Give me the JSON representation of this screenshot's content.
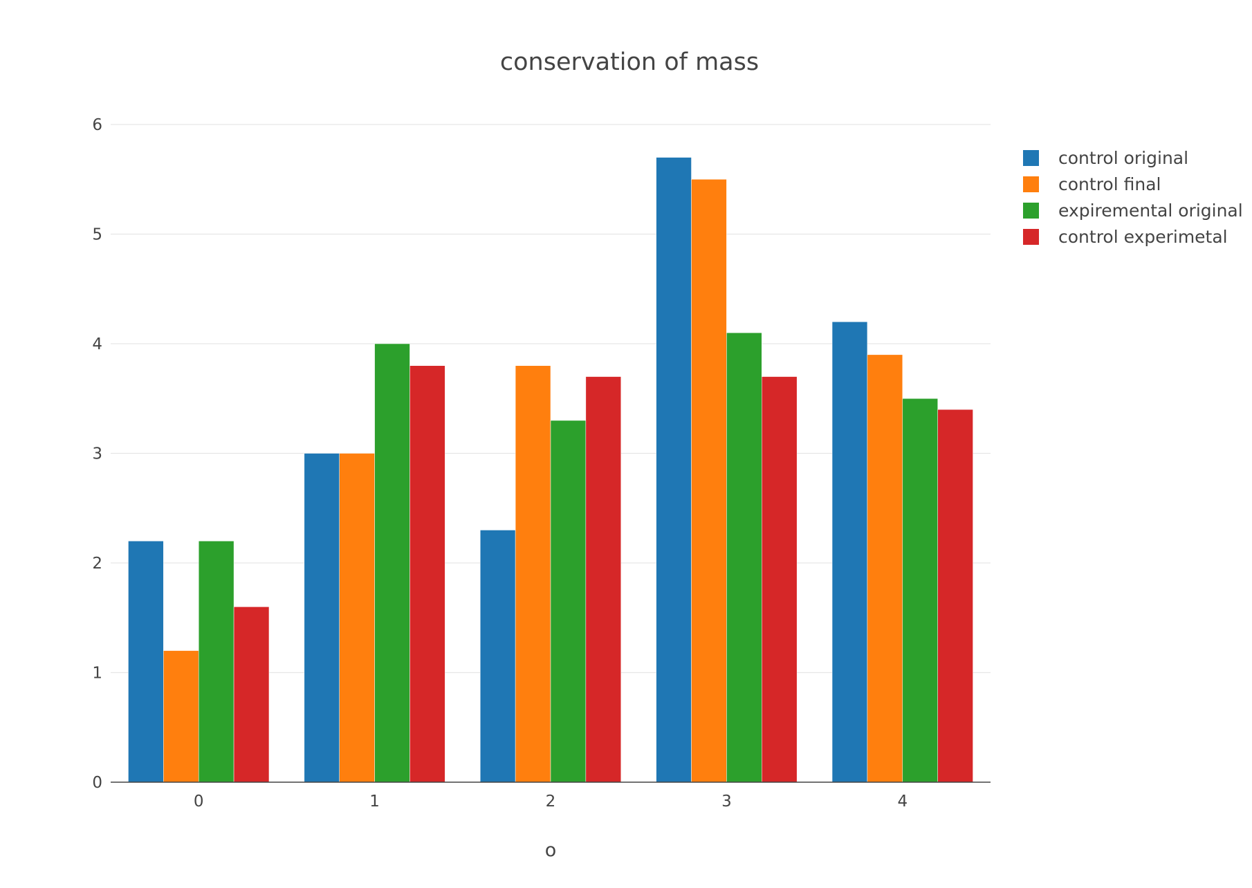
{
  "chart_data": {
    "type": "bar",
    "title": "conservation of mass",
    "xlabel": "o",
    "ylabel": "",
    "categories": [
      "0",
      "1",
      "2",
      "3",
      "4"
    ],
    "ylim": [
      0,
      6
    ],
    "yticks": [
      "0",
      "1",
      "2",
      "3",
      "4",
      "5",
      "6"
    ],
    "grid": true,
    "legend_position": "top-right",
    "series": [
      {
        "name": "control original",
        "color": "#1f77b4",
        "values": [
          2.2,
          3.0,
          2.3,
          5.7,
          4.2
        ]
      },
      {
        "name": "control final",
        "color": "#ff7f0e",
        "values": [
          1.2,
          3.0,
          3.8,
          5.5,
          3.9
        ]
      },
      {
        "name": "expiremental original",
        "color": "#2ca02c",
        "values": [
          2.2,
          4.0,
          3.3,
          4.1,
          3.5
        ]
      },
      {
        "name": "control experimetal",
        "color": "#d62728",
        "values": [
          1.6,
          3.8,
          3.7,
          3.7,
          3.4
        ]
      }
    ]
  }
}
